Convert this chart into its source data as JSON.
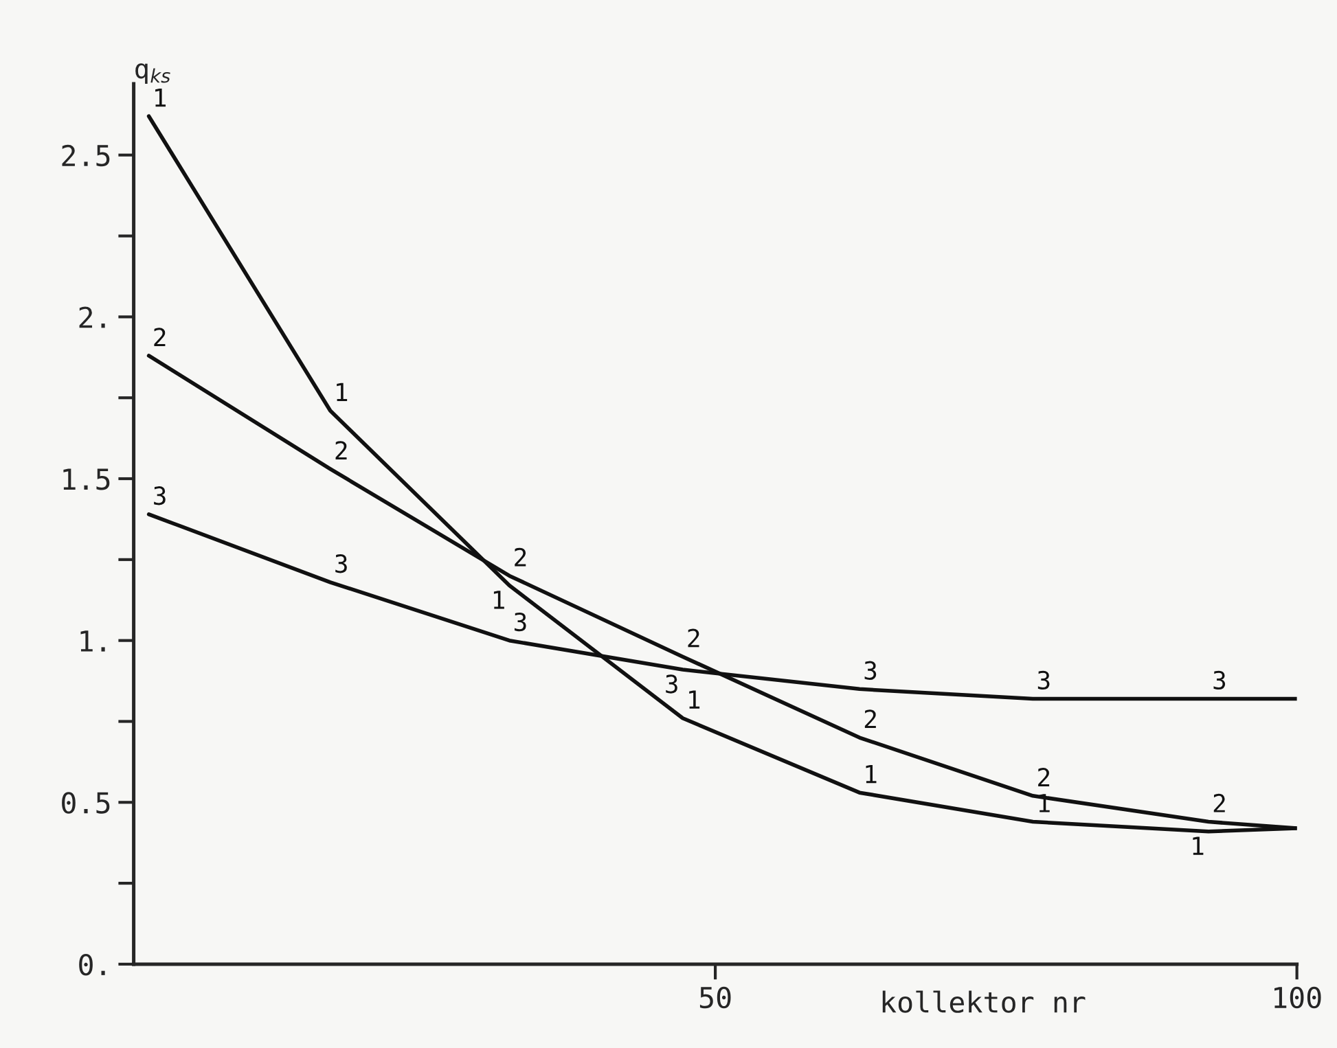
{
  "chart_data": {
    "type": "line",
    "ylabel": "q$_{ks}$",
    "xlabel": "kollektor nr",
    "xlim": [
      0,
      100
    ],
    "xticks": [
      {
        "value": 50,
        "label": "50"
      },
      {
        "value": 100,
        "label": "100"
      }
    ],
    "ylim": [
      0,
      2.72
    ],
    "yticks": [
      {
        "value": 0,
        "label": "0."
      },
      {
        "value": 0.25,
        "label": null
      },
      {
        "value": 0.5,
        "label": "0.5"
      },
      {
        "value": 0.75,
        "label": null
      },
      {
        "value": 1,
        "label": "1."
      },
      {
        "value": 1.25,
        "label": null
      },
      {
        "value": 1.5,
        "label": "1.5"
      },
      {
        "value": 1.75,
        "label": null
      },
      {
        "value": 2,
        "label": "2."
      },
      {
        "value": 2.25,
        "label": null
      },
      {
        "value": 2.5,
        "label": "2.5"
      }
    ],
    "grid": false,
    "legend": false,
    "line_style": "solid",
    "series": [
      {
        "name": "1",
        "color": "#111111",
        "x": [
          1.3,
          16.9,
          32.3,
          47.2,
          62.4,
          77.3,
          92.4,
          100
        ],
        "values": [
          2.62,
          1.71,
          1.17,
          0.76,
          0.53,
          0.44,
          0.41,
          0.42
        ]
      },
      {
        "name": "2",
        "color": "#111111",
        "x": [
          1.3,
          16.9,
          32.3,
          47.2,
          62.4,
          77.3,
          92.4,
          100
        ],
        "values": [
          1.88,
          1.53,
          1.2,
          0.95,
          0.7,
          0.52,
          0.44,
          0.42
        ]
      },
      {
        "name": "3",
        "color": "#111111",
        "x": [
          1.3,
          16.9,
          32.3,
          47.2,
          62.4,
          77.3,
          92.4,
          100
        ],
        "values": [
          1.39,
          1.18,
          1.0,
          0.91,
          0.85,
          0.82,
          0.82,
          0.82
        ]
      }
    ]
  }
}
